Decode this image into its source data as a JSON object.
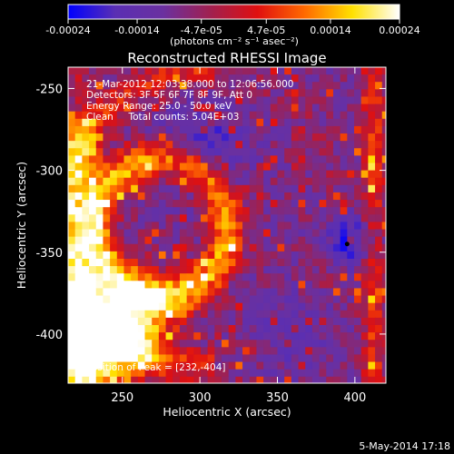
{
  "window": {
    "footer_timestamp": "5-May-2014 17:18"
  },
  "colorbar": {
    "ticks": [
      "-0.00024",
      "-0.00014",
      "-4.7e-05",
      "4.7e-05",
      "0.00014",
      "0.00024"
    ],
    "tick_values": [
      -0.00024,
      -0.00014,
      -4.7e-05,
      4.7e-05,
      0.00014,
      0.00024
    ],
    "range": [
      -0.00024,
      0.00024
    ],
    "units_label": "(photons cm⁻² s⁻¹ asec⁻²)",
    "colors": [
      "#0000ff",
      "#5a2fb3",
      "#6a30a0",
      "#a02050",
      "#e01010",
      "#ff6a00",
      "#ffe000",
      "#ffffff"
    ]
  },
  "chart_data": {
    "type": "heatmap",
    "title": "Reconstructed RHESSI Image",
    "xlabel": "Heliocentric X (arcsec)",
    "ylabel": "Heliocentric Y (arcsec)",
    "xlim": [
      215,
      420
    ],
    "ylim": [
      -430,
      -237
    ],
    "xticks": [
      250,
      300,
      350,
      400
    ],
    "yticks": [
      -250,
      -300,
      -350,
      -400
    ],
    "annotations": [
      "21-Mar-2012 12:03:38.000 to 12:06:56.000",
      "Detectors: 3F 5F 6F 7F 8F 9F, Att 0",
      "Energy Range: 25.0 - 50.0 keV",
      "Clean     Total counts: 5.04E+03"
    ],
    "peak_label": "Position of Peak = [232,-404]",
    "peak_position": [
      232,
      -404
    ],
    "marker_position": [
      395,
      -345
    ]
  }
}
